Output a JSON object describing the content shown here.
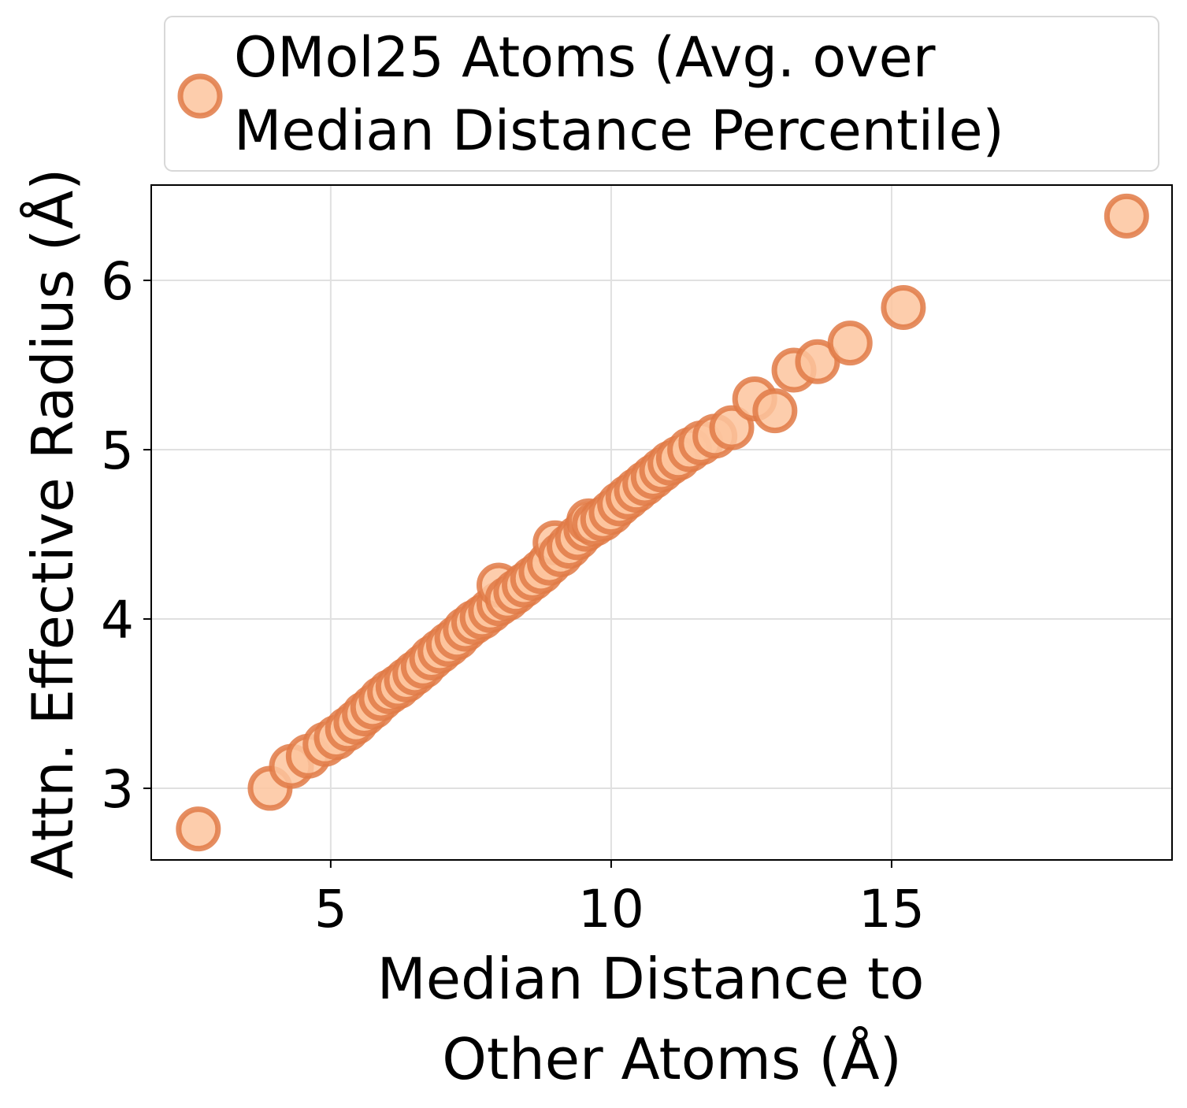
{
  "chart_data": {
    "type": "scatter",
    "title": "",
    "xlabel_lines": [
      "Median Distance to",
      "Other Atoms (Å)"
    ],
    "ylabel": "Attn. Effective Radius (Å)",
    "xlim": [
      1.8,
      20.0
    ],
    "ylim": [
      2.577,
      6.563
    ],
    "xticks": [
      5,
      10,
      15
    ],
    "xtick_labels": [
      "5",
      "10",
      "15"
    ],
    "yticks": [
      3,
      4,
      5,
      6
    ],
    "ytick_labels": [
      "3",
      "4",
      "5",
      "6"
    ],
    "grid": true,
    "legend": {
      "placement": "top (above axes)",
      "label_lines": [
        "OMol25 Atoms (Avg. over",
        "Median Distance Percentile)"
      ]
    },
    "colors": {
      "marker_fill": "#fdc49e",
      "marker_edge": "#e07a47",
      "grid": "#e0e0e0"
    },
    "series": [
      {
        "name": "OMol25 Atoms (Avg. over Median Distance Percentile)",
        "points": [
          [
            2.64,
            2.76
          ],
          [
            3.92,
            3.0
          ],
          [
            4.3,
            3.13
          ],
          [
            4.6,
            3.19
          ],
          [
            4.9,
            3.26
          ],
          [
            5.1,
            3.3
          ],
          [
            5.3,
            3.35
          ],
          [
            5.45,
            3.39
          ],
          [
            5.6,
            3.44
          ],
          [
            5.75,
            3.48
          ],
          [
            5.9,
            3.53
          ],
          [
            6.05,
            3.57
          ],
          [
            6.2,
            3.6
          ],
          [
            6.35,
            3.64
          ],
          [
            6.5,
            3.68
          ],
          [
            6.65,
            3.72
          ],
          [
            6.8,
            3.77
          ],
          [
            6.95,
            3.81
          ],
          [
            7.1,
            3.85
          ],
          [
            7.25,
            3.89
          ],
          [
            7.4,
            3.94
          ],
          [
            7.55,
            3.98
          ],
          [
            7.7,
            4.01
          ],
          [
            7.85,
            4.05
          ],
          [
            8.0,
            4.09
          ],
          [
            8.0,
            4.2
          ],
          [
            8.15,
            4.12
          ],
          [
            8.3,
            4.16
          ],
          [
            8.45,
            4.2
          ],
          [
            8.6,
            4.24
          ],
          [
            8.75,
            4.28
          ],
          [
            8.9,
            4.33
          ],
          [
            9.0,
            4.45
          ],
          [
            9.1,
            4.38
          ],
          [
            9.25,
            4.43
          ],
          [
            9.4,
            4.48
          ],
          [
            9.55,
            4.53
          ],
          [
            9.6,
            4.58
          ],
          [
            9.7,
            4.56
          ],
          [
            9.85,
            4.59
          ],
          [
            10.0,
            4.63
          ],
          [
            10.15,
            4.68
          ],
          [
            10.3,
            4.72
          ],
          [
            10.45,
            4.76
          ],
          [
            10.6,
            4.8
          ],
          [
            10.75,
            4.84
          ],
          [
            10.9,
            4.88
          ],
          [
            11.05,
            4.92
          ],
          [
            11.2,
            4.95
          ],
          [
            11.4,
            5.0
          ],
          [
            11.6,
            5.04
          ],
          [
            11.85,
            5.08
          ],
          [
            12.15,
            5.13
          ],
          [
            12.56,
            5.3
          ],
          [
            12.92,
            5.23
          ],
          [
            13.26,
            5.47
          ],
          [
            13.68,
            5.52
          ],
          [
            14.26,
            5.63
          ],
          [
            15.21,
            5.84
          ],
          [
            19.19,
            6.38
          ]
        ]
      }
    ]
  }
}
